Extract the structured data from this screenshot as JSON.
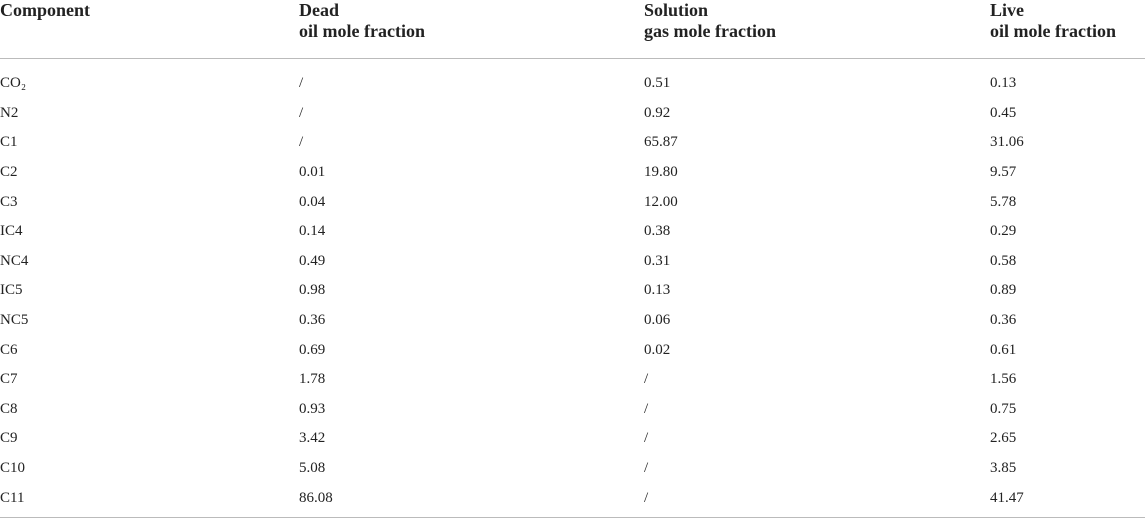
{
  "table": {
    "header": [
      "Component",
      "Dead\noil mole fraction",
      "Solution\ngas mole fraction",
      "Live\noil mole fraction"
    ],
    "rows": [
      [
        "CO₂",
        "/",
        "0.51",
        "0.13"
      ],
      [
        "N2",
        "/",
        "0.92",
        "0.45"
      ],
      [
        "C1",
        "/",
        "65.87",
        "31.06"
      ],
      [
        "C2",
        "0.01",
        "19.80",
        "9.57"
      ],
      [
        "C3",
        "0.04",
        "12.00",
        "5.78"
      ],
      [
        "IC4",
        "0.14",
        "0.38",
        "0.29"
      ],
      [
        "NC4",
        "0.49",
        "0.31",
        "0.58"
      ],
      [
        "IC5",
        "0.98",
        "0.13",
        "0.89"
      ],
      [
        "NC5",
        "0.36",
        "0.06",
        "0.36"
      ],
      [
        "C6",
        "0.69",
        "0.02",
        "0.61"
      ],
      [
        "C7",
        "1.78",
        "/",
        "1.56"
      ],
      [
        "C8",
        "0.93",
        "/",
        "0.75"
      ],
      [
        "C9",
        "3.42",
        "/",
        "2.65"
      ],
      [
        "C10",
        "5.08",
        "/",
        "3.85"
      ],
      [
        "C11",
        "86.08",
        "/",
        "41.47"
      ]
    ]
  }
}
